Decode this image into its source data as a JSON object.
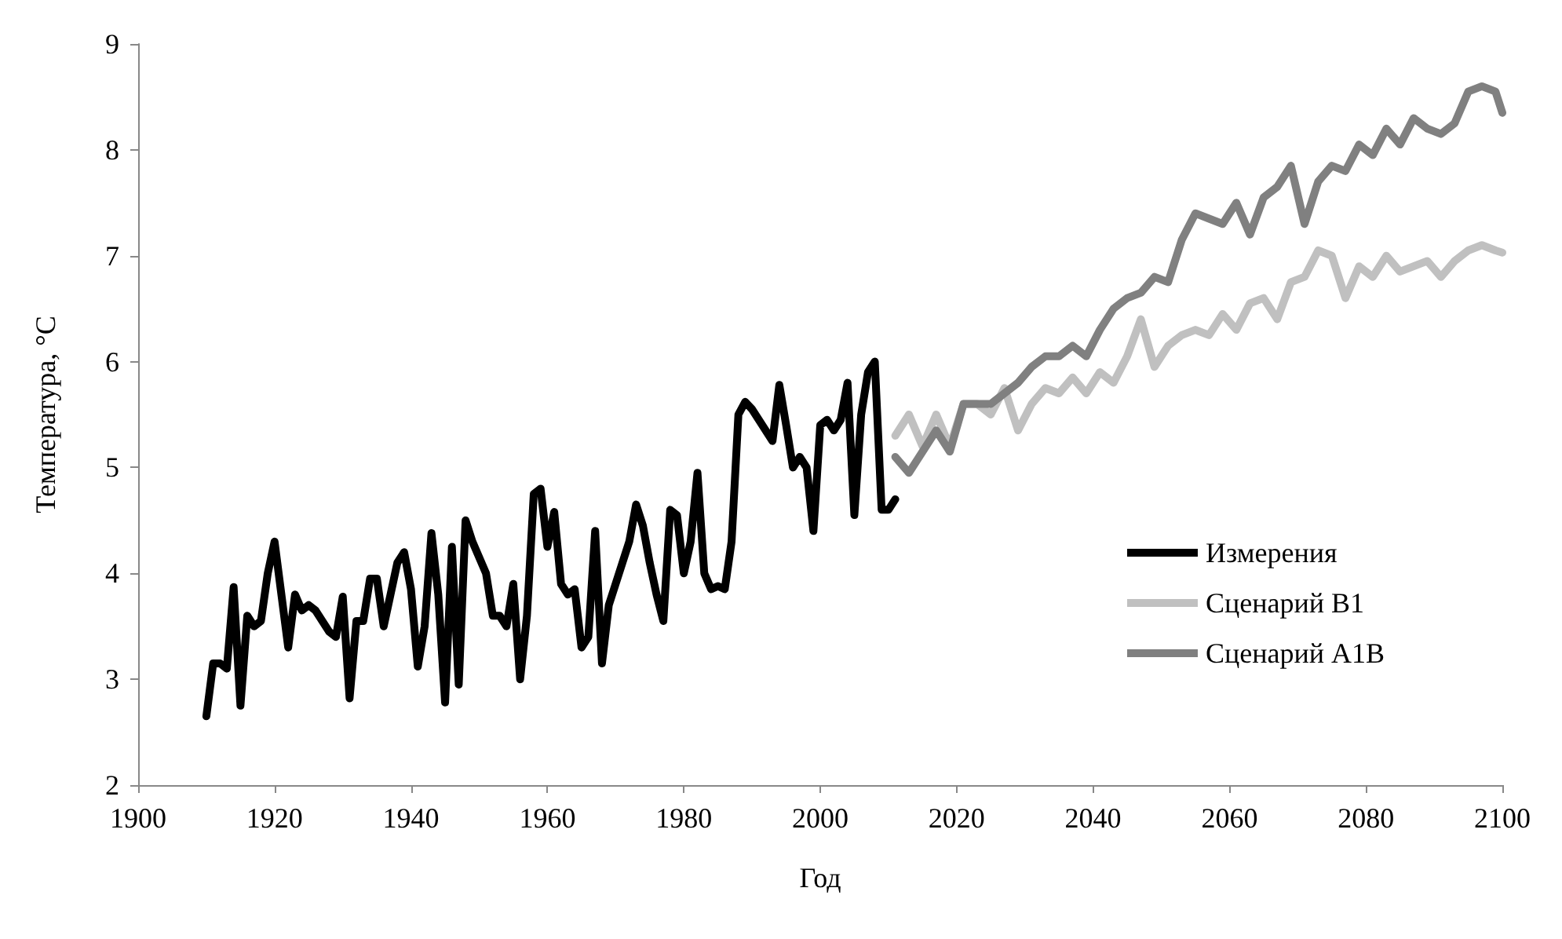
{
  "chart_data": {
    "type": "line",
    "xlabel": "Год",
    "ylabel": "Температура, °C",
    "xlim": [
      1900,
      2100
    ],
    "xticks": [
      1900,
      1920,
      1940,
      1960,
      1980,
      2000,
      2020,
      2040,
      2060,
      2080,
      2100
    ],
    "ylim": [
      2,
      9
    ],
    "yticks": [
      2,
      3,
      4,
      5,
      6,
      7,
      8,
      9
    ],
    "grid": false,
    "legend": "right",
    "marker": "none",
    "line_style": "solid",
    "series": [
      {
        "name": "Измерения",
        "color": "#000000",
        "x": [
          1910,
          1911,
          1912,
          1913,
          1914,
          1915,
          1916,
          1917,
          1918,
          1919,
          1920,
          1921,
          1922,
          1923,
          1924,
          1925,
          1926,
          1927,
          1928,
          1929,
          1930,
          1931,
          1932,
          1933,
          1934,
          1935,
          1936,
          1937,
          1938,
          1939,
          1940,
          1941,
          1942,
          1943,
          1944,
          1945,
          1946,
          1947,
          1948,
          1949,
          1950,
          1951,
          1952,
          1953,
          1954,
          1955,
          1956,
          1957,
          1958,
          1959,
          1960,
          1961,
          1962,
          1963,
          1964,
          1965,
          1966,
          1967,
          1968,
          1969,
          1970,
          1971,
          1972,
          1973,
          1974,
          1975,
          1976,
          1977,
          1978,
          1979,
          1980,
          1981,
          1982,
          1983,
          1984,
          1985,
          1986,
          1987,
          1988,
          1989,
          1990,
          1991,
          1992,
          1993,
          1994,
          1995,
          1996,
          1997,
          1998,
          1999,
          2000,
          2001,
          2002,
          2003,
          2004,
          2005,
          2006,
          2007,
          2008,
          2009,
          2010,
          2011
        ],
        "values": [
          2.65,
          3.15,
          3.15,
          3.1,
          3.87,
          2.75,
          3.6,
          3.5,
          3.55,
          4.0,
          4.3,
          3.8,
          3.3,
          3.8,
          3.65,
          3.7,
          3.65,
          3.55,
          3.45,
          3.4,
          3.78,
          2.82,
          3.55,
          3.55,
          3.95,
          3.95,
          3.5,
          3.8,
          4.1,
          4.2,
          3.85,
          3.12,
          3.5,
          4.38,
          3.8,
          2.78,
          4.25,
          2.95,
          4.5,
          4.3,
          4.15,
          4.0,
          3.6,
          3.6,
          3.5,
          3.9,
          3.0,
          3.6,
          4.75,
          4.8,
          4.25,
          4.58,
          3.9,
          3.8,
          3.85,
          3.3,
          3.4,
          4.4,
          3.15,
          3.7,
          3.9,
          4.1,
          4.3,
          4.65,
          4.45,
          4.1,
          3.8,
          3.55,
          4.6,
          4.55,
          4.0,
          4.3,
          4.95,
          4.0,
          3.85,
          3.88,
          3.85,
          4.3,
          5.5,
          5.62,
          5.55,
          5.45,
          5.35,
          5.25,
          5.78,
          5.4,
          5.0,
          5.1,
          5.0,
          4.4,
          5.4,
          5.45,
          5.35,
          5.45,
          5.8,
          4.55,
          5.5,
          5.9,
          6.0,
          4.6,
          4.6,
          4.7
        ]
      },
      {
        "name": "Сценарий B1",
        "color": "#c0c0c0",
        "x": [
          2011,
          2013,
          2015,
          2017,
          2019,
          2021,
          2023,
          2025,
          2027,
          2029,
          2031,
          2033,
          2035,
          2037,
          2039,
          2041,
          2043,
          2045,
          2047,
          2049,
          2051,
          2053,
          2055,
          2057,
          2059,
          2061,
          2063,
          2065,
          2067,
          2069,
          2071,
          2073,
          2075,
          2077,
          2079,
          2081,
          2083,
          2085,
          2087,
          2089,
          2091,
          2093,
          2095,
          2097,
          2099,
          2100
        ],
        "values": [
          5.3,
          5.5,
          5.2,
          5.5,
          5.2,
          5.6,
          5.6,
          5.5,
          5.75,
          5.35,
          5.6,
          5.75,
          5.7,
          5.85,
          5.7,
          5.9,
          5.8,
          6.05,
          6.4,
          5.95,
          6.15,
          6.25,
          6.3,
          6.25,
          6.45,
          6.3,
          6.55,
          6.6,
          6.4,
          6.75,
          6.8,
          7.05,
          7.0,
          6.6,
          6.9,
          6.8,
          7.0,
          6.85,
          6.9,
          6.95,
          6.8,
          6.95,
          7.05,
          7.1,
          7.05,
          7.03
        ]
      },
      {
        "name": "Сценарий A1B",
        "color": "#808080",
        "x": [
          2011,
          2013,
          2015,
          2017,
          2019,
          2021,
          2023,
          2025,
          2027,
          2029,
          2031,
          2033,
          2035,
          2037,
          2039,
          2041,
          2043,
          2045,
          2047,
          2049,
          2051,
          2053,
          2055,
          2057,
          2059,
          2061,
          2063,
          2065,
          2067,
          2069,
          2071,
          2073,
          2075,
          2077,
          2079,
          2081,
          2083,
          2085,
          2087,
          2089,
          2091,
          2093,
          2095,
          2097,
          2099,
          2100
        ],
        "values": [
          5.1,
          4.95,
          5.15,
          5.35,
          5.15,
          5.6,
          5.6,
          5.6,
          5.7,
          5.8,
          5.95,
          6.05,
          6.05,
          6.15,
          6.05,
          6.3,
          6.5,
          6.6,
          6.65,
          6.8,
          6.75,
          7.15,
          7.4,
          7.35,
          7.3,
          7.5,
          7.2,
          7.55,
          7.65,
          7.85,
          7.3,
          7.7,
          7.85,
          7.8,
          8.05,
          7.95,
          8.2,
          8.05,
          8.3,
          8.2,
          8.15,
          8.25,
          8.55,
          8.6,
          8.55,
          8.35
        ]
      }
    ]
  }
}
